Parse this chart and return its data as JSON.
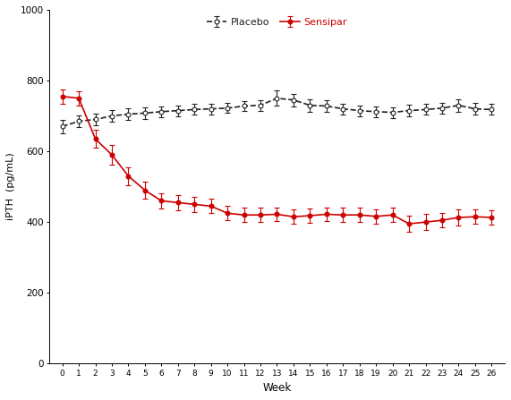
{
  "weeks": [
    0,
    1,
    2,
    3,
    4,
    5,
    6,
    7,
    8,
    9,
    10,
    11,
    12,
    13,
    14,
    15,
    16,
    17,
    18,
    19,
    20,
    21,
    22,
    23,
    24,
    25,
    26
  ],
  "placebo_mean": [
    670,
    685,
    690,
    700,
    705,
    708,
    712,
    715,
    718,
    720,
    722,
    728,
    730,
    750,
    745,
    730,
    728,
    720,
    715,
    712,
    710,
    715,
    718,
    722,
    730,
    720,
    718
  ],
  "placebo_se": [
    18,
    16,
    16,
    17,
    16,
    16,
    15,
    15,
    15,
    15,
    14,
    14,
    15,
    22,
    18,
    18,
    16,
    15,
    15,
    15,
    15,
    16,
    15,
    15,
    18,
    16,
    15
  ],
  "sensipar_mean": [
    755,
    750,
    635,
    590,
    530,
    490,
    460,
    455,
    450,
    445,
    425,
    420,
    420,
    422,
    415,
    418,
    422,
    420,
    420,
    416,
    420,
    395,
    400,
    405,
    413,
    415,
    413
  ],
  "sensipar_se": [
    20,
    20,
    25,
    28,
    25,
    25,
    22,
    22,
    22,
    20,
    20,
    20,
    20,
    20,
    20,
    20,
    20,
    20,
    20,
    20,
    20,
    22,
    22,
    20,
    22,
    20,
    20
  ],
  "placebo_color": "#222222",
  "sensipar_color": "#cc0000",
  "ylabel": "iPTH  (pg/mL)",
  "xlabel": "Week",
  "ylim": [
    0,
    1000
  ],
  "yticks": [
    0,
    200,
    400,
    600,
    800,
    1000
  ],
  "background_color": "#ffffff",
  "legend_placebo": "Placebo",
  "legend_sensipar": "Sensipar"
}
